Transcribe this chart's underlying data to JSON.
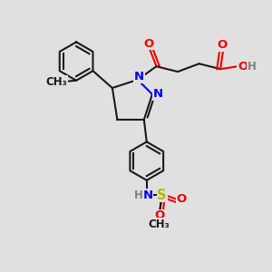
{
  "bg_color": "#e0e0e0",
  "bond_color": "#1a1a1a",
  "n_color": "#0000ee",
  "o_color": "#ee0000",
  "s_color": "#b8b800",
  "h_color": "#808080",
  "lw": 1.5,
  "fs": 9.5,
  "fs_small": 8.5,
  "xlim": [
    0,
    10
  ],
  "ylim": [
    0,
    10
  ]
}
